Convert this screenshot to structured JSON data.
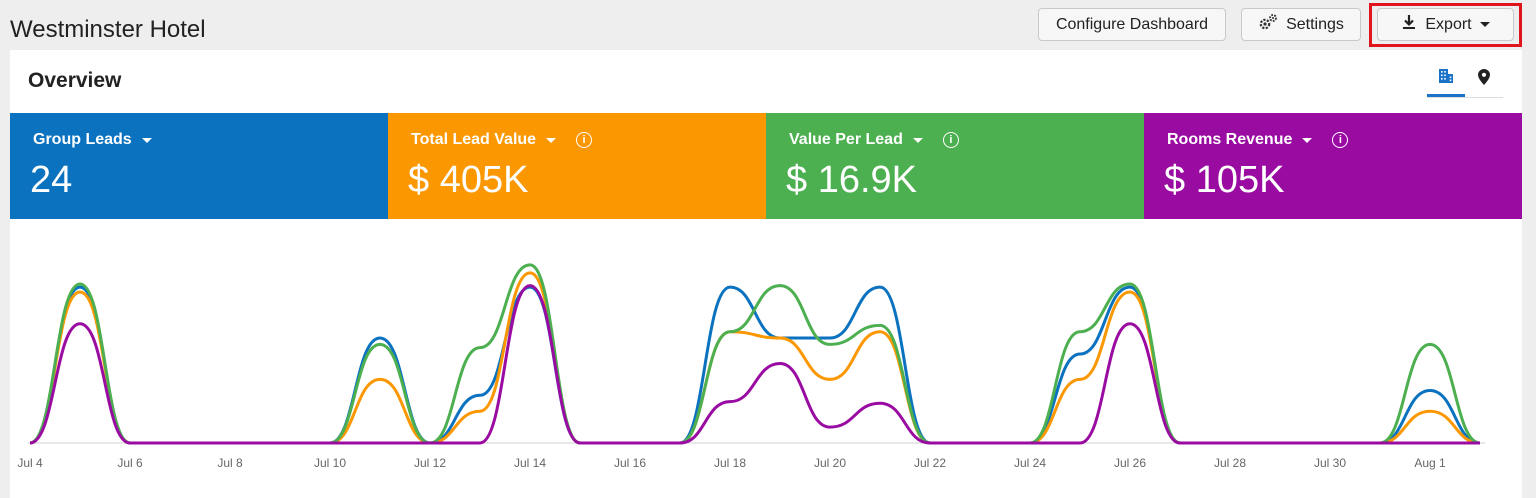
{
  "header": {
    "title": "Westminster Hotel",
    "configure_label": "Configure Dashboard",
    "settings_label": "Settings",
    "export_label": "Export"
  },
  "icons": {
    "settings": "gears-icon",
    "export": "download-icon",
    "building": "building-icon",
    "map": "map-pin-icon"
  },
  "overview": {
    "title": "Overview"
  },
  "kpis": [
    {
      "label": "Group Leads",
      "value": "24",
      "color": "#0a72bf",
      "info": false
    },
    {
      "label": "Total Lead Value",
      "value": "$ 405K",
      "color": "#fb9700",
      "info": true
    },
    {
      "label": "Value Per Lead",
      "value": "$ 16.9K",
      "color": "#4caf50",
      "info": true
    },
    {
      "label": "Rooms Revenue",
      "value": "$ 105K",
      "color": "#9a0ba2",
      "info": true
    }
  ],
  "chart_data": {
    "type": "line",
    "x": [
      "Jul 4",
      "Jul 5",
      "Jul 6",
      "Jul 7",
      "Jul 8",
      "Jul 9",
      "Jul 10",
      "Jul 11",
      "Jul 12",
      "Jul 13",
      "Jul 14",
      "Jul 15",
      "Jul 16",
      "Jul 17",
      "Jul 18",
      "Jul 19",
      "Jul 20",
      "Jul 21",
      "Jul 22",
      "Jul 23",
      "Jul 24",
      "Jul 25",
      "Jul 26",
      "Jul 27",
      "Jul 28",
      "Jul 29",
      "Jul 30",
      "Jul 31",
      "Aug 1",
      "Aug 2"
    ],
    "tick_labels": [
      "Jul 4",
      "Jul 6",
      "Jul 8",
      "Jul 10",
      "Jul 12",
      "Jul 14",
      "Jul 16",
      "Jul 18",
      "Jul 20",
      "Jul 22",
      "Jul 24",
      "Jul 26",
      "Jul 28",
      "Jul 30",
      "Aug 1"
    ],
    "ylim": [
      0,
      1
    ],
    "series": [
      {
        "color": "#0a72bf",
        "values": [
          0,
          0.98,
          0,
          0,
          0,
          0,
          0,
          0.66,
          0,
          0.3,
          0.98,
          0,
          0,
          0,
          0.98,
          0.66,
          0.66,
          0.98,
          0,
          0,
          0,
          0.56,
          0.98,
          0,
          0,
          0,
          0,
          0,
          0.33,
          0
        ]
      },
      {
        "color": "#fb9700",
        "values": [
          0,
          0.95,
          0,
          0,
          0,
          0,
          0,
          0.4,
          0,
          0.2,
          1.07,
          0,
          0,
          0,
          0.7,
          0.66,
          0.4,
          0.7,
          0,
          0,
          0,
          0.4,
          0.95,
          0,
          0,
          0,
          0,
          0,
          0.2,
          0
        ]
      },
      {
        "color": "#4caf50",
        "values": [
          0,
          1.0,
          0,
          0,
          0,
          0,
          0,
          0.62,
          0,
          0.6,
          1.12,
          0,
          0,
          0,
          0.7,
          0.99,
          0.62,
          0.74,
          0,
          0,
          0,
          0.7,
          1.0,
          0,
          0,
          0,
          0,
          0,
          0.62,
          0
        ]
      },
      {
        "color": "#9a0ba2",
        "values": [
          0,
          0.75,
          0,
          0,
          0,
          0,
          0,
          0,
          0,
          0,
          0.99,
          0,
          0,
          0,
          0.26,
          0.5,
          0.1,
          0.25,
          0,
          0,
          0,
          0,
          0.75,
          0,
          0,
          0,
          0,
          0,
          0,
          0
        ]
      }
    ]
  }
}
